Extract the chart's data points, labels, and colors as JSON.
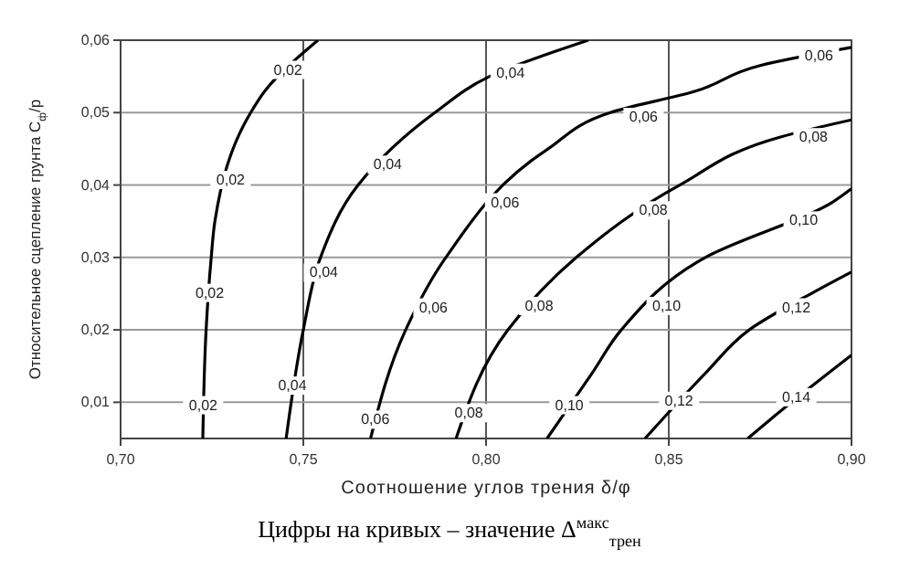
{
  "chart_data": {
    "type": "line",
    "xlabel": "Соотношение углов трения δ/φ",
    "ylabel": "Относительное сцепление грунта C$_{ф}$/p",
    "xlim": [
      0.7,
      0.9
    ],
    "ylim": [
      0.005,
      0.06
    ],
    "xticks": [
      {
        "value": 0.7,
        "label": "0,70"
      },
      {
        "value": 0.75,
        "label": "0,75"
      },
      {
        "value": 0.8,
        "label": "0,80"
      },
      {
        "value": 0.85,
        "label": "0,85"
      },
      {
        "value": 0.9,
        "label": "0,90"
      }
    ],
    "yticks": [
      {
        "value": 0.01,
        "label": "0,01"
      },
      {
        "value": 0.02,
        "label": "0,02"
      },
      {
        "value": 0.03,
        "label": "0,03"
      },
      {
        "value": 0.04,
        "label": "0,04"
      },
      {
        "value": 0.05,
        "label": "0,05"
      },
      {
        "value": 0.06,
        "label": "0,06"
      }
    ],
    "grid": true,
    "marker": "none",
    "line_style": "solid",
    "series": [
      {
        "color": "#000000",
        "x": [
          0.7225,
          0.7234,
          0.7248,
          0.7258,
          0.7356,
          0.7395,
          0.754
        ],
        "values": [
          0.005,
          0.02,
          0.03,
          0.035,
          0.05,
          0.053,
          0.06
        ]
      },
      {
        "color": "#000000",
        "x": [
          0.7453,
          0.75,
          0.7547,
          0.765,
          0.786,
          0.801,
          0.828
        ],
        "values": [
          0.005,
          0.02,
          0.03,
          0.04,
          0.05,
          0.055,
          0.06
        ]
      },
      {
        "color": "#000000",
        "x": [
          0.7684,
          0.778,
          0.789,
          0.817,
          0.834,
          0.8575,
          0.875,
          0.9
        ],
        "values": [
          0.005,
          0.02,
          0.03,
          0.045,
          0.05,
          0.053,
          0.0565,
          0.059
        ]
      },
      {
        "color": "#000000",
        "x": [
          0.7918,
          0.806,
          0.8247,
          0.853,
          0.881,
          0.9
        ],
        "values": [
          0.005,
          0.02,
          0.03,
          0.04,
          0.0467,
          0.049
        ]
      },
      {
        "color": "#000000",
        "x": [
          0.8167,
          0.829,
          0.837,
          0.86,
          0.895,
          0.9
        ],
        "values": [
          0.005,
          0.014,
          0.02,
          0.03,
          0.0377,
          0.0395
        ]
      },
      {
        "color": "#000000",
        "x": [
          0.8435,
          0.86,
          0.872,
          0.89,
          0.9
        ],
        "values": [
          0.005,
          0.014,
          0.02,
          0.0253,
          0.028
        ]
      },
      {
        "color": "#000000",
        "x": [
          0.8716,
          0.8775,
          0.9
        ],
        "values": [
          0.005,
          0.0075,
          0.0165
        ]
      }
    ],
    "annotations": [
      {
        "text": "0,02",
        "x": 0.7458,
        "y": 0.0559
      },
      {
        "text": "0,02",
        "x": 0.7301,
        "y": 0.0407
      },
      {
        "text": "0,02",
        "x": 0.7244,
        "y": 0.0251
      },
      {
        "text": "0,02",
        "x": 0.7226,
        "y": 0.0096
      },
      {
        "text": "0,04",
        "x": 0.8067,
        "y": 0.0555
      },
      {
        "text": "0,04",
        "x": 0.7731,
        "y": 0.0428
      },
      {
        "text": "0,04",
        "x": 0.7556,
        "y": 0.0279
      },
      {
        "text": "0,04",
        "x": 0.747,
        "y": 0.0123
      },
      {
        "text": "0,06",
        "x": 0.8911,
        "y": 0.0578
      },
      {
        "text": "0,06",
        "x": 0.8431,
        "y": 0.0494
      },
      {
        "text": "0,06",
        "x": 0.8052,
        "y": 0.0376
      },
      {
        "text": "0,06",
        "x": 0.7856,
        "y": 0.0231
      },
      {
        "text": "0,06",
        "x": 0.7697,
        "y": 0.0076
      },
      {
        "text": "0,08",
        "x": 0.8896,
        "y": 0.0466
      },
      {
        "text": "0,08",
        "x": 0.8458,
        "y": 0.0365
      },
      {
        "text": "0,08",
        "x": 0.8145,
        "y": 0.0233
      },
      {
        "text": "0,08",
        "x": 0.7953,
        "y": 0.0085
      },
      {
        "text": "0,10",
        "x": 0.8869,
        "y": 0.0351
      },
      {
        "text": "0,10",
        "x": 0.8494,
        "y": 0.0233
      },
      {
        "text": "0,10",
        "x": 0.8228,
        "y": 0.0096
      },
      {
        "text": "0,12",
        "x": 0.8849,
        "y": 0.0231
      },
      {
        "text": "0,12",
        "x": 0.8528,
        "y": 0.0102
      },
      {
        "text": "0,14",
        "x": 0.8849,
        "y": 0.0107
      },
      "Цифры на кривых – значение Δ$^{макс}$$_{трен}$"
    ]
  }
}
